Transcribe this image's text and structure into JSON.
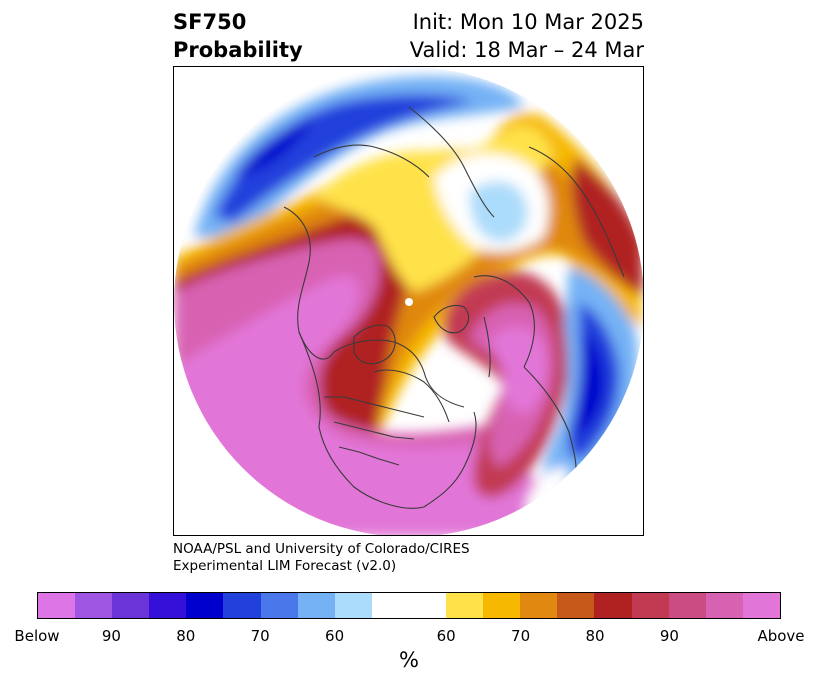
{
  "header": {
    "title_line1": "SF750",
    "title_line2": "Probability",
    "init_label": "Init: Mon 10 Mar 2025",
    "valid_label": "Valid: 18 Mar – 24 Mar"
  },
  "credit": {
    "line1": "NOAA/PSL and University of Colorado/CIRES",
    "line2": "Experimental LIM Forecast (v2.0)"
  },
  "colorbar": {
    "units": "%",
    "colors": [
      "#dd75e6",
      "#9d55e2",
      "#6a34d8",
      "#3410d8",
      "#0000cc",
      "#2140dc",
      "#4a78ea",
      "#74b2f5",
      "#acdcfb",
      "#ffffff",
      "#ffe24a",
      "#f6b800",
      "#e08810",
      "#c6581a",
      "#b02222",
      "#c23a52",
      "#ca4c82",
      "#d862b2",
      "#e276d8"
    ],
    "wide_index": 9,
    "ticks": [
      "Below",
      "90",
      "80",
      "70",
      "60",
      "60",
      "70",
      "80",
      "90",
      "Above"
    ]
  },
  "map": {
    "projection": "north-polar-stereographic",
    "regions": [
      {
        "name": "pink-pacific-north-america",
        "color": "#e276d8"
      },
      {
        "name": "pink-atlantic-europe",
        "color": "#e276d8"
      },
      {
        "name": "blue-north-pacific-asia",
        "color": "#0000cc"
      },
      {
        "name": "blue-north-africa",
        "color": "#0000cc"
      },
      {
        "name": "light-blue-siberia",
        "color": "#acdcfb"
      },
      {
        "name": "yellow-arctic-band",
        "color": "#ffe24a"
      },
      {
        "name": "red-middle-east",
        "color": "#b02222"
      }
    ]
  }
}
